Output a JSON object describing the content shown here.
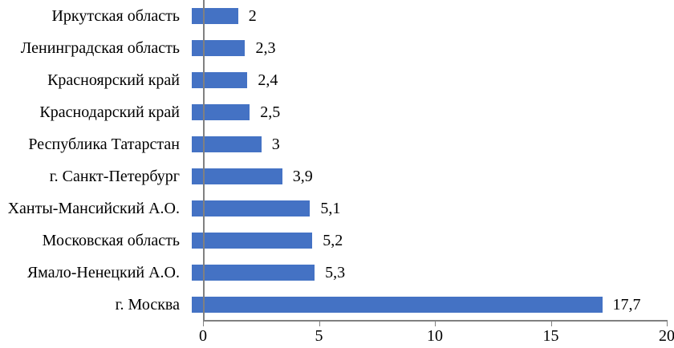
{
  "chart_data": {
    "type": "bar",
    "orientation": "horizontal",
    "title": "",
    "xlabel": "",
    "ylabel": "",
    "categories": [
      "Иркутская область",
      "Ленинградская область",
      "Красноярский край",
      "Краснодарский край",
      "Республика Татарстан",
      "г. Санкт-Петербург",
      "Ханты-Мансийский А.О.",
      "Московская область",
      "Ямало-Ненецкий А.О.",
      "г. Москва"
    ],
    "values": [
      2,
      2.3,
      2.4,
      2.5,
      3,
      3.9,
      5.1,
      5.2,
      5.3,
      17.7
    ],
    "value_labels": [
      "2",
      "2,3",
      "2,4",
      "2,5",
      "3",
      "3,9",
      "5,1",
      "5,2",
      "5,3",
      "17,7"
    ],
    "x_ticks": [
      "0",
      "5",
      "10",
      "15",
      "20"
    ],
    "x_tick_values": [
      0,
      5,
      10,
      15,
      20
    ],
    "xlim": [
      0,
      20
    ],
    "bar_color": "#4472C4",
    "axis_color": "#808080",
    "text_color": "#000000",
    "grid": "off",
    "legend": "none"
  }
}
